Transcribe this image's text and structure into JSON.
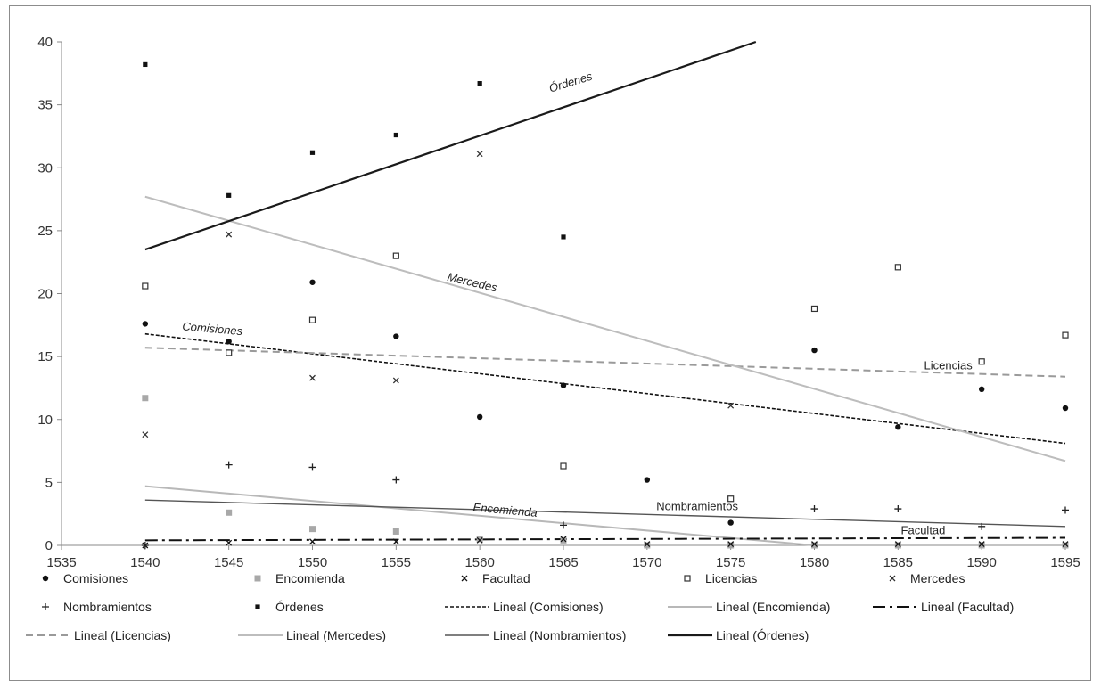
{
  "chart_data": {
    "type": "scatter",
    "title": "",
    "xlabel": "",
    "ylabel": "",
    "xlim": [
      1535,
      1595
    ],
    "ylim": [
      0,
      40
    ],
    "x_ticks": [
      1535,
      1540,
      1545,
      1550,
      1555,
      1560,
      1565,
      1570,
      1575,
      1580,
      1585,
      1590,
      1595
    ],
    "y_ticks": [
      0,
      5,
      10,
      15,
      20,
      25,
      30,
      35,
      40
    ],
    "grid": false,
    "legend_position": "bottom",
    "series": [
      {
        "name": "Comisiones",
        "marker": "dot",
        "color": "#111111",
        "x": [
          1540,
          1545,
          1550,
          1555,
          1560,
          1565,
          1570,
          1575,
          1580,
          1585,
          1590,
          1595
        ],
        "y": [
          17.6,
          16.2,
          20.9,
          16.6,
          10.2,
          12.7,
          5.2,
          1.8,
          15.5,
          9.4,
          12.4,
          10.9
        ]
      },
      {
        "name": "Encomienda",
        "marker": "filled-square",
        "color": "#a8a8a8",
        "x": [
          1540,
          1545,
          1550,
          1555,
          1560,
          1565,
          1570,
          1575,
          1580,
          1585,
          1590,
          1595
        ],
        "y": [
          11.7,
          2.6,
          1.3,
          1.1,
          0.5,
          0.4,
          0.0,
          0.0,
          0.0,
          0.0,
          0.0,
          0.0
        ]
      },
      {
        "name": "Facultad",
        "marker": "x",
        "color": "#111111",
        "x": [
          1540,
          1545,
          1550,
          1555,
          1560,
          1565,
          1570,
          1575,
          1580,
          1585,
          1590,
          1595
        ],
        "y": [
          0.0,
          0.2,
          0.3,
          0.3,
          0.4,
          0.5,
          0.1,
          0.1,
          0.1,
          0.1,
          0.1,
          0.1
        ]
      },
      {
        "name": "Licencias",
        "marker": "open-square",
        "color": "#333333",
        "x": [
          1540,
          1545,
          1550,
          1555,
          1565,
          1575,
          1580,
          1585,
          1590,
          1595
        ],
        "y": [
          20.6,
          15.3,
          17.9,
          23.0,
          6.3,
          3.7,
          18.8,
          22.1,
          14.6,
          16.7
        ]
      },
      {
        "name": "Mercedes",
        "marker": "x",
        "color": "#333333",
        "x": [
          1540,
          1545,
          1550,
          1555,
          1560,
          1575
        ],
        "y": [
          8.8,
          24.7,
          13.3,
          13.1,
          31.1,
          11.1
        ]
      },
      {
        "name": "Nombramientos",
        "marker": "plus",
        "color": "#222222",
        "x": [
          1540,
          1545,
          1550,
          1555,
          1565,
          1580,
          1585,
          1590,
          1595
        ],
        "y": [
          0.0,
          6.4,
          6.2,
          5.2,
          1.6,
          2.9,
          2.9,
          1.5,
          2.8
        ]
      },
      {
        "name": "Órdenes",
        "marker": "filled-small-square",
        "color": "#111111",
        "x": [
          1540,
          1545,
          1550,
          1555,
          1560,
          1565
        ],
        "y": [
          38.2,
          27.8,
          31.2,
          32.6,
          36.7,
          24.5
        ]
      }
    ],
    "trendlines": [
      {
        "name": "Lineal (Comisiones)",
        "style": "dotted",
        "color": "#111111",
        "x": [
          1540,
          1595
        ],
        "y": [
          16.8,
          8.1
        ],
        "label": "Comisiones"
      },
      {
        "name": "Lineal (Encomienda)",
        "style": "solid",
        "color": "#b8b8b8",
        "x": [
          1540,
          1580
        ],
        "y": [
          4.7,
          0.0
        ],
        "label": "Encomienda"
      },
      {
        "name": "Lineal (Facultad)",
        "style": "dash-dot",
        "color": "#111111",
        "x": [
          1540,
          1595
        ],
        "y": [
          0.4,
          0.6
        ],
        "label": "Facultad"
      },
      {
        "name": "Lineal (Licencias)",
        "style": "dashed",
        "color": "#9a9a9a",
        "x": [
          1540,
          1595
        ],
        "y": [
          15.7,
          13.4
        ],
        "label": "Licencias"
      },
      {
        "name": "Lineal (Mercedes)",
        "style": "solid",
        "color": "#bdbdbd",
        "x": [
          1540,
          1595
        ],
        "y": [
          27.7,
          6.7
        ],
        "label": "Mercedes"
      },
      {
        "name": "Lineal (Nombramientos)",
        "style": "solid",
        "color": "#555555",
        "x": [
          1540,
          1595
        ],
        "y": [
          3.6,
          1.5
        ],
        "label": "Nombramientos"
      },
      {
        "name": "Lineal (Órdenes)",
        "style": "solid",
        "color": "#1a1a1a",
        "x": [
          1540,
          1576.5
        ],
        "y": [
          23.5,
          40.0
        ],
        "label": "Órdenes"
      }
    ]
  }
}
